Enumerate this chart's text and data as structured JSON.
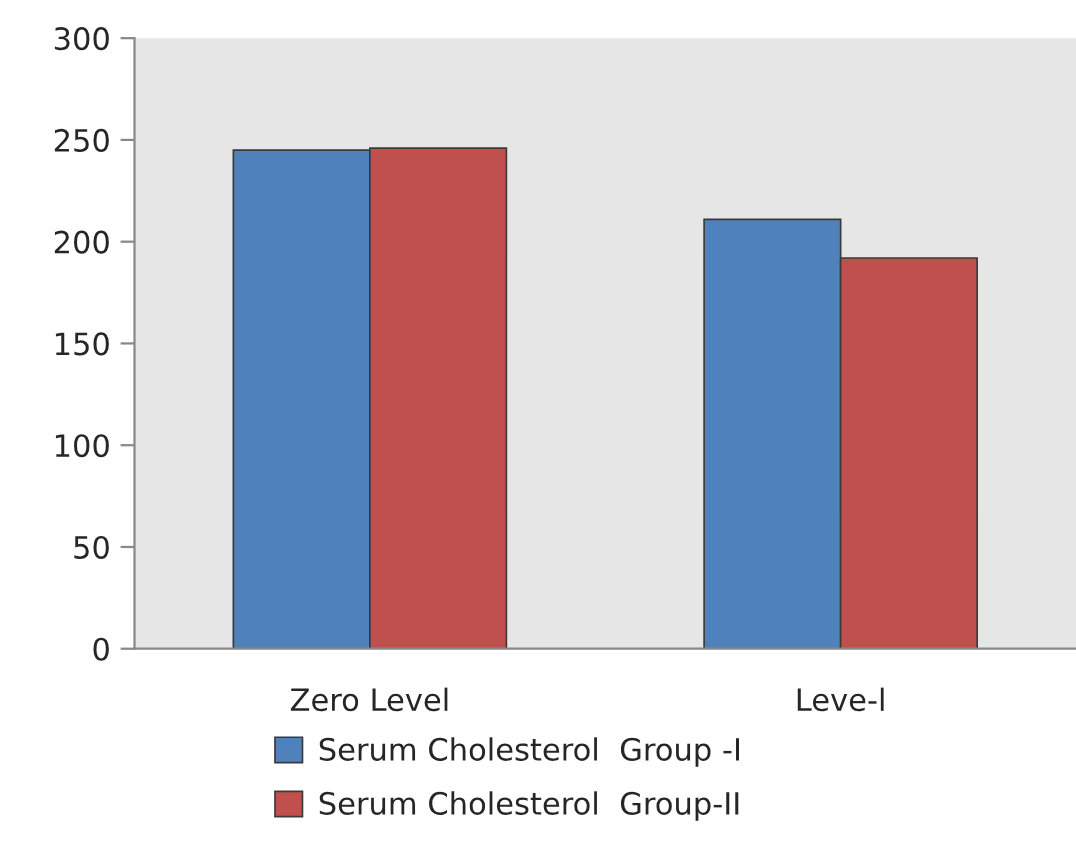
{
  "chart_data": {
    "type": "bar",
    "categories": [
      "Zero Level",
      "Leve-l"
    ],
    "series": [
      {
        "name": "Serum Cholesterol  Group -I",
        "color": "#4f81bd",
        "values": [
          245,
          211
        ]
      },
      {
        "name": "Serum Cholesterol  Group-II",
        "color": "#c0504d",
        "values": [
          246,
          192
        ]
      }
    ],
    "ylim": [
      0,
      300
    ],
    "yticks": [
      0,
      50,
      100,
      150,
      200,
      250,
      300
    ],
    "grid": false,
    "legend": "bottom"
  }
}
